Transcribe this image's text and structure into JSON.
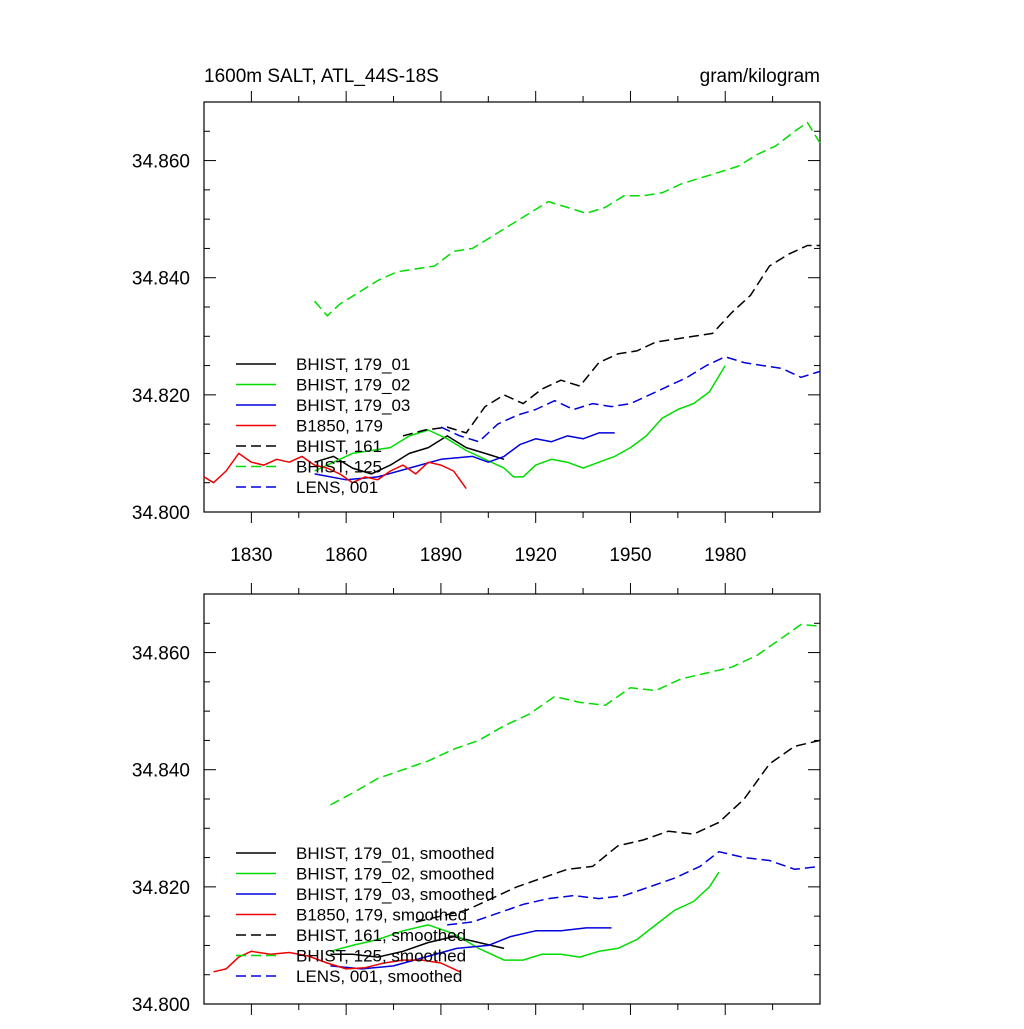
{
  "chart_data": [
    {
      "type": "line",
      "title": "1600m SALT, ATL_44S-18S",
      "units": "gram/kilogram",
      "xlim": [
        1815,
        2010
      ],
      "ylim": [
        34.8,
        34.87
      ],
      "x_ticks": [
        1830,
        1860,
        1890,
        1920,
        1950,
        1980
      ],
      "x_tick_labels": [
        "1830",
        "1860",
        "1890",
        "1920",
        "1950",
        "1980"
      ],
      "y_ticks": [
        34.8,
        34.82,
        34.84,
        34.86
      ],
      "y_tick_labels": [
        "34.800",
        "34.820",
        "34.840",
        "34.860"
      ],
      "legend_position": "lower-left",
      "series": [
        {
          "name": "BHIST, 179_01",
          "color": "#000000",
          "dash": "solid",
          "x": [
            1850,
            1856,
            1862,
            1868,
            1874,
            1880,
            1886,
            1892,
            1898,
            1904,
            1910
          ],
          "y": [
            34.8085,
            34.8095,
            34.8075,
            34.8065,
            34.808,
            34.81,
            34.811,
            34.813,
            34.811,
            34.81,
            34.809
          ]
        },
        {
          "name": "BHIST, 179_02",
          "color": "#00dd00",
          "dash": "solid",
          "x": [
            1850,
            1856,
            1862,
            1868,
            1874,
            1880,
            1886,
            1892,
            1898,
            1904,
            1910,
            1913,
            1916,
            1920,
            1925,
            1930,
            1935,
            1940,
            1945,
            1950,
            1955,
            1960,
            1965,
            1970,
            1975,
            1980
          ],
          "y": [
            34.807,
            34.8085,
            34.81,
            34.8105,
            34.811,
            34.813,
            34.814,
            34.8125,
            34.8105,
            34.809,
            34.8075,
            34.806,
            34.806,
            34.808,
            34.809,
            34.8085,
            34.8075,
            34.8085,
            34.8095,
            34.811,
            34.813,
            34.816,
            34.8175,
            34.8185,
            34.8205,
            34.825
          ]
        },
        {
          "name": "BHIST, 179_03",
          "color": "#0000dd",
          "dash": "solid",
          "x": [
            1850,
            1860,
            1870,
            1880,
            1890,
            1900,
            1905,
            1910,
            1915,
            1920,
            1925,
            1930,
            1935,
            1940,
            1945
          ],
          "y": [
            34.8065,
            34.8055,
            34.806,
            34.8075,
            34.809,
            34.8095,
            34.8085,
            34.8095,
            34.8115,
            34.8125,
            34.812,
            34.813,
            34.8125,
            34.8135,
            34.8135
          ]
        },
        {
          "name": "B1850, 179",
          "color": "#ee0000",
          "dash": "solid",
          "x": [
            1815,
            1818,
            1822,
            1826,
            1830,
            1834,
            1838,
            1842,
            1846,
            1850,
            1854,
            1858,
            1862,
            1866,
            1870,
            1874,
            1878,
            1882,
            1886,
            1890,
            1894,
            1898
          ],
          "y": [
            34.806,
            34.805,
            34.807,
            34.81,
            34.8085,
            34.808,
            34.809,
            34.8085,
            34.8095,
            34.808,
            34.8075,
            34.8065,
            34.805,
            34.806,
            34.8055,
            34.807,
            34.808,
            34.8065,
            34.8085,
            34.808,
            34.807,
            34.804
          ]
        },
        {
          "name": "BHIST, 161",
          "color": "#000000",
          "dash": "dash",
          "x": [
            1878,
            1885,
            1892,
            1898,
            1904,
            1910,
            1916,
            1922,
            1928,
            1934,
            1940,
            1946,
            1952,
            1958,
            1964,
            1970,
            1976,
            1982,
            1988,
            1994,
            2000,
            2006,
            2010
          ],
          "y": [
            34.813,
            34.814,
            34.8145,
            34.8135,
            34.818,
            34.82,
            34.8185,
            34.821,
            34.8225,
            34.8215,
            34.8255,
            34.827,
            34.8275,
            34.829,
            34.8295,
            34.83,
            34.8305,
            34.834,
            34.837,
            34.842,
            34.844,
            34.8455,
            34.8455
          ]
        },
        {
          "name": "BHIST, 125",
          "color": "#00dd00",
          "dash": "dash",
          "x": [
            1850,
            1854,
            1858,
            1864,
            1870,
            1876,
            1882,
            1888,
            1894,
            1900,
            1906,
            1912,
            1918,
            1924,
            1930,
            1936,
            1942,
            1948,
            1954,
            1960,
            1966,
            1972,
            1978,
            1984,
            1990,
            1996,
            2002,
            2006,
            2010
          ],
          "y": [
            34.836,
            34.8335,
            34.8355,
            34.8375,
            34.8395,
            34.841,
            34.8415,
            34.842,
            34.8445,
            34.845,
            34.847,
            34.849,
            34.851,
            34.853,
            34.852,
            34.851,
            34.852,
            34.854,
            34.854,
            34.8545,
            34.856,
            34.857,
            34.858,
            34.859,
            34.861,
            34.8625,
            34.865,
            34.8665,
            34.863
          ]
        },
        {
          "name": "LENS, 001",
          "color": "#0000dd",
          "dash": "dash",
          "x": [
            1890,
            1896,
            1902,
            1908,
            1914,
            1920,
            1926,
            1932,
            1938,
            1944,
            1950,
            1956,
            1962,
            1968,
            1974,
            1980,
            1986,
            1992,
            1998,
            2004,
            2010
          ],
          "y": [
            34.8145,
            34.813,
            34.812,
            34.815,
            34.8165,
            34.8175,
            34.819,
            34.8175,
            34.8185,
            34.818,
            34.8185,
            34.82,
            34.8215,
            34.823,
            34.825,
            34.8265,
            34.8255,
            34.825,
            34.8245,
            34.823,
            34.824
          ]
        }
      ]
    },
    {
      "type": "line",
      "title": "",
      "units": "",
      "xlim": [
        1815,
        2010
      ],
      "ylim": [
        34.8,
        34.87
      ],
      "x_ticks": [
        1830,
        1860,
        1890,
        1920,
        1950,
        1980
      ],
      "x_tick_labels": [],
      "y_ticks": [
        34.8,
        34.82,
        34.84,
        34.86
      ],
      "y_tick_labels": [
        "34.800",
        "34.820",
        "34.840",
        "34.860"
      ],
      "legend_position": "lower-left",
      "series": [
        {
          "name": "BHIST, 179_01, smoothed",
          "color": "#000000",
          "dash": "solid",
          "x": [
            1855,
            1862,
            1870,
            1878,
            1886,
            1894,
            1902,
            1910
          ],
          "y": [
            34.8085,
            34.8085,
            34.808,
            34.809,
            34.8105,
            34.8115,
            34.8105,
            34.8095
          ]
        },
        {
          "name": "BHIST, 179_02, smoothed",
          "color": "#00dd00",
          "dash": "solid",
          "x": [
            1855,
            1862,
            1870,
            1878,
            1886,
            1894,
            1902,
            1910,
            1916,
            1922,
            1928,
            1934,
            1940,
            1946,
            1952,
            1958,
            1964,
            1970,
            1975,
            1978
          ],
          "y": [
            34.809,
            34.81,
            34.811,
            34.8125,
            34.8135,
            34.812,
            34.8095,
            34.8075,
            34.8075,
            34.8085,
            34.8085,
            34.808,
            34.809,
            34.8095,
            34.811,
            34.8135,
            34.816,
            34.8175,
            34.82,
            34.8225
          ]
        },
        {
          "name": "BHIST, 179_03, smoothed",
          "color": "#0000dd",
          "dash": "solid",
          "x": [
            1855,
            1865,
            1875,
            1885,
            1895,
            1905,
            1912,
            1920,
            1928,
            1936,
            1944
          ],
          "y": [
            34.8065,
            34.806,
            34.8065,
            34.808,
            34.8095,
            34.81,
            34.8115,
            34.8125,
            34.8125,
            34.813,
            34.813
          ]
        },
        {
          "name": "B1850, 179, smoothed",
          "color": "#ee0000",
          "dash": "solid",
          "x": [
            1818,
            1822,
            1826,
            1830,
            1836,
            1842,
            1848,
            1854,
            1860,
            1866,
            1872,
            1878,
            1884,
            1890,
            1896
          ],
          "y": [
            34.8055,
            34.806,
            34.808,
            34.809,
            34.8085,
            34.8088,
            34.8082,
            34.807,
            34.806,
            34.8062,
            34.807,
            34.8075,
            34.8075,
            34.807,
            34.8055
          ]
        },
        {
          "name": "BHIST, 161, smoothed",
          "color": "#000000",
          "dash": "dash",
          "x": [
            1882,
            1890,
            1898,
            1906,
            1914,
            1922,
            1930,
            1938,
            1946,
            1954,
            1962,
            1970,
            1978,
            1986,
            1994,
            2002,
            2010
          ],
          "y": [
            34.814,
            34.815,
            34.816,
            34.818,
            34.82,
            34.8215,
            34.823,
            34.8235,
            34.827,
            34.828,
            34.8295,
            34.829,
            34.831,
            34.835,
            34.841,
            34.844,
            34.845
          ]
        },
        {
          "name": "BHIST, 125, smoothed",
          "color": "#00dd00",
          "dash": "dash",
          "x": [
            1855,
            1862,
            1870,
            1878,
            1886,
            1894,
            1902,
            1910,
            1918,
            1926,
            1934,
            1942,
            1950,
            1958,
            1966,
            1974,
            1982,
            1990,
            1998,
            2004,
            2010
          ],
          "y": [
            34.834,
            34.836,
            34.8385,
            34.84,
            34.8415,
            34.8435,
            34.845,
            34.8475,
            34.8495,
            34.8525,
            34.8515,
            34.851,
            34.854,
            34.8535,
            34.8555,
            34.8565,
            34.8575,
            34.8595,
            34.8625,
            34.8648,
            34.8645
          ]
        },
        {
          "name": "LENS, 001, smoothed",
          "color": "#0000dd",
          "dash": "dash",
          "x": [
            1892,
            1900,
            1908,
            1916,
            1924,
            1932,
            1940,
            1948,
            1956,
            1964,
            1972,
            1978,
            1986,
            1994,
            2002,
            2010
          ],
          "y": [
            34.8135,
            34.814,
            34.8155,
            34.817,
            34.818,
            34.8185,
            34.818,
            34.8185,
            34.82,
            34.8215,
            34.8235,
            34.826,
            34.825,
            34.8245,
            34.823,
            34.8235
          ]
        }
      ]
    }
  ]
}
